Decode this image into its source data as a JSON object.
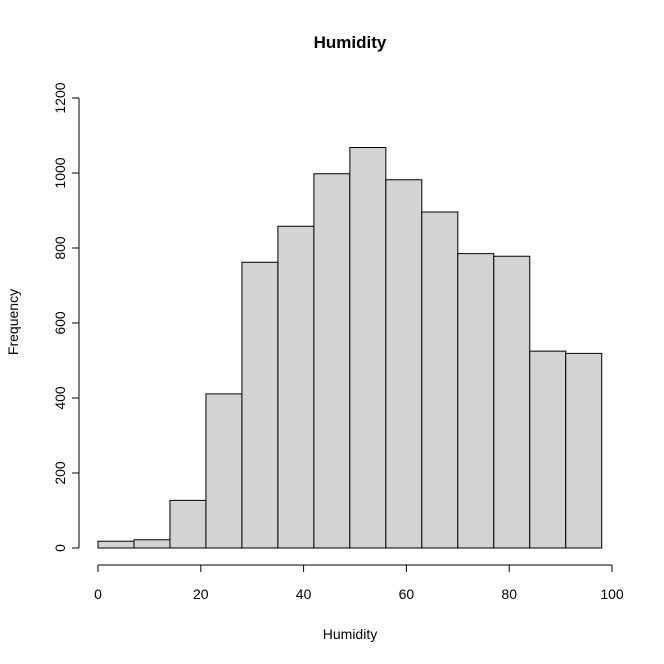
{
  "chart_data": {
    "type": "bar",
    "title": "Humidity",
    "xlabel": "Humidity",
    "ylabel": "Frequency",
    "bin_edges": [
      0,
      7,
      14,
      21,
      28,
      35,
      42,
      49,
      56,
      63,
      70,
      77,
      84,
      91,
      98
    ],
    "values": [
      18,
      22,
      127,
      411,
      762,
      858,
      998,
      1068,
      982,
      896,
      785,
      778,
      525,
      519
    ],
    "xlim": [
      0,
      100
    ],
    "ylim": [
      0,
      1200
    ],
    "x_ticks": [
      0,
      20,
      40,
      60,
      80,
      100
    ],
    "y_ticks": [
      0,
      200,
      400,
      600,
      800,
      1000,
      1200
    ],
    "bar_color": "#d3d3d3",
    "grid": false,
    "legend": false
  }
}
